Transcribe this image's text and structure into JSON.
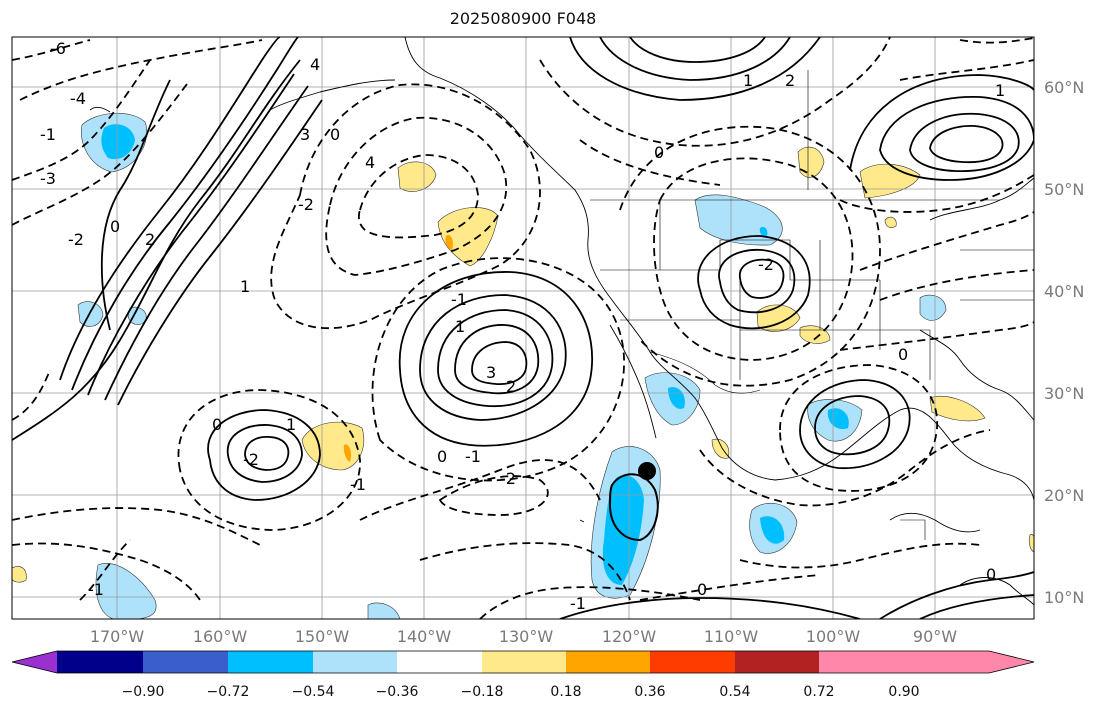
{
  "title": "2025080900 F048",
  "lat_labels": [
    "60°N",
    "50°N",
    "40°N",
    "30°N",
    "20°N",
    "10°N"
  ],
  "lon_labels": [
    "170°W",
    "160°W",
    "150°W",
    "140°W",
    "130°W",
    "120°W",
    "110°W",
    "100°W",
    "90°W"
  ],
  "colorbar": {
    "ticks": [
      "−0.90",
      "−0.72",
      "−0.54",
      "−0.36",
      "−0.18",
      "0.18",
      "0.36",
      "0.54",
      "0.72",
      "0.90"
    ],
    "colors": [
      "#9b30d0",
      "#00008b",
      "#3a5fcd",
      "#00bfff",
      "#aee2fb",
      "#ffffff",
      "#ffe98a",
      "#ffa500",
      "#ff3c00",
      "#b22222",
      "#ff88aa"
    ]
  },
  "contour_labels": [
    "-6",
    "-4",
    "-2",
    "0",
    "2",
    "4",
    "3",
    "-3",
    "-1",
    "1",
    "4",
    "-2",
    "0",
    "3",
    "1",
    "2",
    "-1",
    "-2",
    "0",
    "1",
    "-1",
    "0",
    "-1",
    "-2",
    "-2",
    "0",
    "1",
    "2",
    "-1",
    "0",
    "0",
    "-1",
    "0",
    "1"
  ]
}
